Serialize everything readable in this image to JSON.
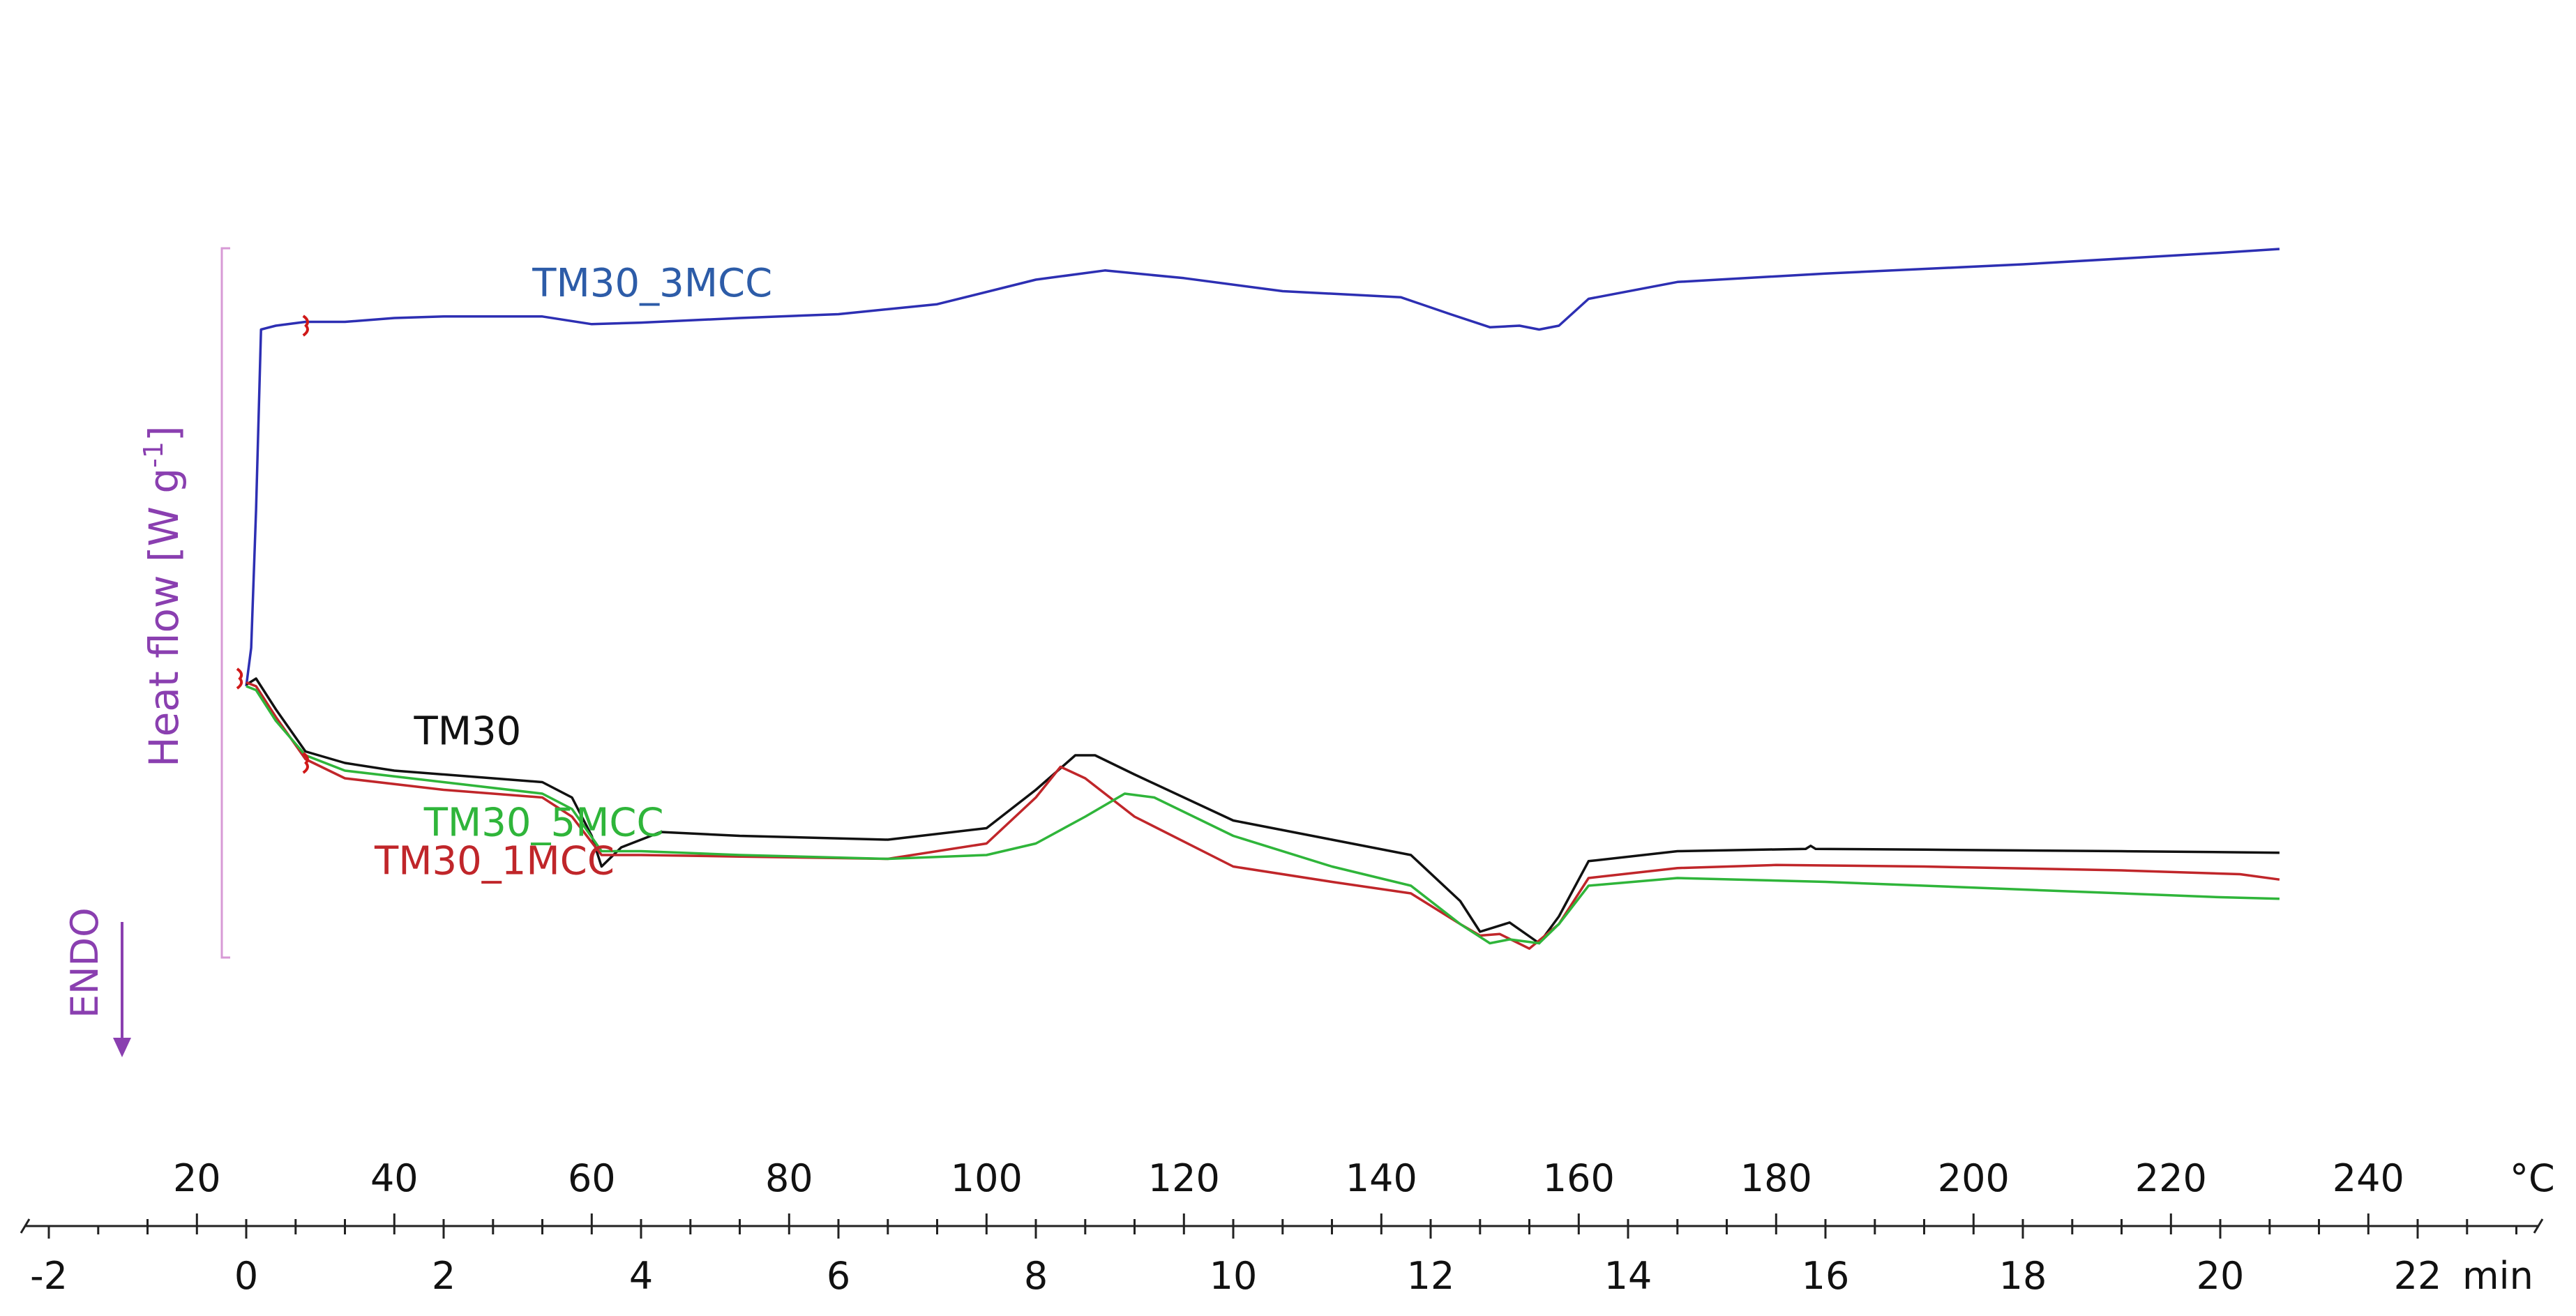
{
  "chart_data": {
    "type": "line",
    "title": "",
    "ylabel": "Heat flow [W g",
    "ylabel_sup": "-1",
    "ylabel_suffix": "]",
    "endo_label": "ENDO",
    "x_time_unit": "min",
    "x_temp_unit": "°C",
    "x_time_ticks": [
      "-2",
      "0",
      "2",
      "4",
      "6",
      "8",
      "10",
      "12",
      "14",
      "16",
      "18",
      "20",
      "22"
    ],
    "x_temp_ticks": [
      "20",
      "40",
      "60",
      "80",
      "100",
      "120",
      "140",
      "160",
      "180",
      "200",
      "220",
      "240"
    ],
    "time_range": [
      -2,
      23.2
    ],
    "grid": false,
    "colors": {
      "TM30_3MCC": "#2d2fb3",
      "TM30": "#111111",
      "TM30_1MCC": "#c0262a",
      "TM30_5MCC": "#2fb53a",
      "axis_label": "#8a3fb0",
      "scale_bar": "#d79ad6",
      "series_label_3mcc": "#2d5ca8"
    },
    "series": [
      {
        "name": "TM30_3MCC",
        "points": [
          [
            0.0,
            -1.1
          ],
          [
            0.05,
            -0.6
          ],
          [
            0.1,
            1.2
          ],
          [
            0.15,
            3.55
          ],
          [
            0.3,
            3.6
          ],
          [
            0.6,
            3.65
          ],
          [
            1.0,
            3.65
          ],
          [
            1.5,
            3.7
          ],
          [
            2.0,
            3.72
          ],
          [
            3.0,
            3.72
          ],
          [
            3.5,
            3.62
          ],
          [
            4.0,
            3.64
          ],
          [
            5.0,
            3.7
          ],
          [
            6.0,
            3.75
          ],
          [
            7.0,
            3.88
          ],
          [
            8.0,
            4.2
          ],
          [
            8.7,
            4.32
          ],
          [
            9.5,
            4.22
          ],
          [
            10.5,
            4.05
          ],
          [
            11.7,
            3.97
          ],
          [
            12.2,
            3.75
          ],
          [
            12.6,
            3.58
          ],
          [
            12.9,
            3.6
          ],
          [
            13.1,
            3.55
          ],
          [
            13.3,
            3.6
          ],
          [
            13.6,
            3.95
          ],
          [
            14.5,
            4.17
          ],
          [
            16.0,
            4.28
          ],
          [
            18.0,
            4.4
          ],
          [
            20.0,
            4.55
          ],
          [
            20.6,
            4.6
          ]
        ]
      },
      {
        "name": "TM30",
        "points": [
          [
            0.0,
            -1.08
          ],
          [
            0.1,
            -1.0
          ],
          [
            0.3,
            -1.4
          ],
          [
            0.6,
            -1.95
          ],
          [
            1.0,
            -2.1
          ],
          [
            1.5,
            -2.2
          ],
          [
            2.5,
            -2.3
          ],
          [
            3.0,
            -2.35
          ],
          [
            3.3,
            -2.55
          ],
          [
            3.5,
            -3.05
          ],
          [
            3.6,
            -3.45
          ],
          [
            3.8,
            -3.2
          ],
          [
            4.2,
            -3.0
          ],
          [
            5.0,
            -3.05
          ],
          [
            6.5,
            -3.1
          ],
          [
            7.5,
            -2.95
          ],
          [
            8.0,
            -2.45
          ],
          [
            8.4,
            -2.0
          ],
          [
            8.6,
            -2.0
          ],
          [
            9.0,
            -2.25
          ],
          [
            10.0,
            -2.85
          ],
          [
            11.0,
            -3.1
          ],
          [
            11.8,
            -3.3
          ],
          [
            12.3,
            -3.9
          ],
          [
            12.5,
            -4.3
          ],
          [
            12.8,
            -4.18
          ],
          [
            13.1,
            -4.45
          ],
          [
            13.3,
            -4.1
          ],
          [
            13.6,
            -3.38
          ],
          [
            14.5,
            -3.25
          ],
          [
            15.8,
            -3.22
          ],
          [
            15.85,
            -3.18
          ],
          [
            15.9,
            -3.22
          ],
          [
            17.0,
            -3.23
          ],
          [
            19.0,
            -3.25
          ],
          [
            20.6,
            -3.27
          ]
        ]
      },
      {
        "name": "TM30_1MCC",
        "points": [
          [
            0.0,
            -1.05
          ],
          [
            0.1,
            -1.1
          ],
          [
            0.3,
            -1.5
          ],
          [
            0.6,
            -2.05
          ],
          [
            1.0,
            -2.3
          ],
          [
            2.0,
            -2.45
          ],
          [
            3.0,
            -2.55
          ],
          [
            3.3,
            -2.8
          ],
          [
            3.6,
            -3.3
          ],
          [
            4.0,
            -3.3
          ],
          [
            5.0,
            -3.32
          ],
          [
            6.5,
            -3.35
          ],
          [
            7.5,
            -3.15
          ],
          [
            8.0,
            -2.55
          ],
          [
            8.25,
            -2.15
          ],
          [
            8.5,
            -2.3
          ],
          [
            9.0,
            -2.8
          ],
          [
            10.0,
            -3.45
          ],
          [
            11.0,
            -3.65
          ],
          [
            11.8,
            -3.8
          ],
          [
            12.3,
            -4.2
          ],
          [
            12.5,
            -4.35
          ],
          [
            12.7,
            -4.33
          ],
          [
            13.0,
            -4.52
          ],
          [
            13.3,
            -4.2
          ],
          [
            13.6,
            -3.6
          ],
          [
            14.5,
            -3.47
          ],
          [
            15.5,
            -3.43
          ],
          [
            17.0,
            -3.45
          ],
          [
            19.0,
            -3.5
          ],
          [
            20.2,
            -3.55
          ],
          [
            20.6,
            -3.62
          ]
        ]
      },
      {
        "name": "TM30_5MCC",
        "points": [
          [
            0.0,
            -1.1
          ],
          [
            0.1,
            -1.15
          ],
          [
            0.3,
            -1.55
          ],
          [
            0.6,
            -2.0
          ],
          [
            1.0,
            -2.2
          ],
          [
            2.0,
            -2.35
          ],
          [
            3.0,
            -2.5
          ],
          [
            3.3,
            -2.7
          ],
          [
            3.6,
            -3.25
          ],
          [
            4.0,
            -3.25
          ],
          [
            5.0,
            -3.3
          ],
          [
            6.5,
            -3.35
          ],
          [
            7.5,
            -3.3
          ],
          [
            8.0,
            -3.15
          ],
          [
            8.5,
            -2.8
          ],
          [
            8.9,
            -2.5
          ],
          [
            9.2,
            -2.55
          ],
          [
            10.0,
            -3.05
          ],
          [
            11.0,
            -3.45
          ],
          [
            11.8,
            -3.7
          ],
          [
            12.3,
            -4.2
          ],
          [
            12.6,
            -4.45
          ],
          [
            12.8,
            -4.4
          ],
          [
            13.1,
            -4.45
          ],
          [
            13.3,
            -4.2
          ],
          [
            13.6,
            -3.7
          ],
          [
            14.5,
            -3.6
          ],
          [
            16.0,
            -3.65
          ],
          [
            18.0,
            -3.75
          ],
          [
            20.0,
            -3.85
          ],
          [
            20.6,
            -3.87
          ]
        ]
      }
    ],
    "series_labels": [
      {
        "name": "TM30_3MCC",
        "text": "TM30_3MCC",
        "at": [
          2.9,
          3.98
        ]
      },
      {
        "name": "TM30",
        "text": "TM30",
        "at": [
          1.7,
          -1.86
        ]
      },
      {
        "name": "TM30_5MCC",
        "text": "TM30_5MCC",
        "at": [
          1.8,
          -3.05
        ]
      },
      {
        "name": "TM30_1MCC",
        "text": "TM30_1MCC",
        "at": [
          1.3,
          -3.55
        ]
      }
    ]
  }
}
